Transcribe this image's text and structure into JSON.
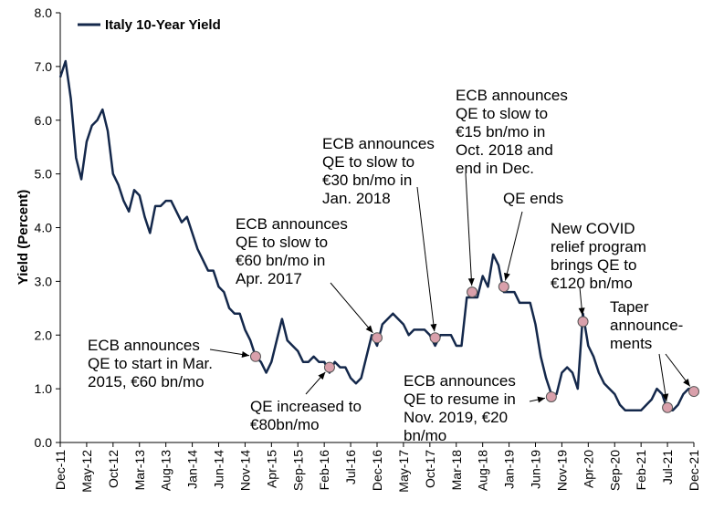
{
  "colors": {
    "line": "#14284b",
    "marker_fill": "#d9a0ab",
    "marker_stroke": "#555555",
    "arrow": "#000000"
  },
  "chart_data": {
    "type": "line",
    "title": "",
    "xlabel": "",
    "ylabel": "Yield (Percent)",
    "ylim": [
      0,
      8
    ],
    "yticks": [
      "0.0",
      "1.0",
      "2.0",
      "3.0",
      "4.0",
      "5.0",
      "6.0",
      "7.0",
      "8.0"
    ],
    "xlim": [
      "2011-12",
      "2021-12"
    ],
    "xticks": [
      "Dec-11",
      "May-12",
      "Oct-12",
      "Mar-13",
      "Aug-13",
      "Jan-14",
      "Jun-14",
      "Nov-14",
      "Apr-15",
      "Sep-15",
      "Feb-16",
      "Jul-16",
      "Dec-16",
      "May-17",
      "Oct-17",
      "Mar-18",
      "Aug-18",
      "Jan-19",
      "Jun-19",
      "Nov-19",
      "Apr-20",
      "Sep-20",
      "Feb-21",
      "Jul-21",
      "Dec-21"
    ],
    "grid": false,
    "legend_position": "top-left",
    "series": [
      {
        "name": "Italy 10-Year Yield",
        "points": [
          [
            "2011-12",
            6.8
          ],
          [
            "2012-01",
            7.1
          ],
          [
            "2012-02",
            6.4
          ],
          [
            "2012-03",
            5.3
          ],
          [
            "2012-04",
            4.9
          ],
          [
            "2012-05",
            5.6
          ],
          [
            "2012-06",
            5.9
          ],
          [
            "2012-07",
            6.0
          ],
          [
            "2012-08",
            6.2
          ],
          [
            "2012-09",
            5.8
          ],
          [
            "2012-10",
            5.0
          ],
          [
            "2012-11",
            4.8
          ],
          [
            "2012-12",
            4.5
          ],
          [
            "2013-01",
            4.3
          ],
          [
            "2013-02",
            4.7
          ],
          [
            "2013-03",
            4.6
          ],
          [
            "2013-04",
            4.2
          ],
          [
            "2013-05",
            3.9
          ],
          [
            "2013-06",
            4.4
          ],
          [
            "2013-07",
            4.4
          ],
          [
            "2013-08",
            4.5
          ],
          [
            "2013-09",
            4.5
          ],
          [
            "2013-10",
            4.3
          ],
          [
            "2013-11",
            4.1
          ],
          [
            "2013-12",
            4.2
          ],
          [
            "2014-01",
            3.9
          ],
          [
            "2014-02",
            3.6
          ],
          [
            "2014-03",
            3.4
          ],
          [
            "2014-04",
            3.2
          ],
          [
            "2014-05",
            3.2
          ],
          [
            "2014-06",
            2.9
          ],
          [
            "2014-07",
            2.8
          ],
          [
            "2014-08",
            2.5
          ],
          [
            "2014-09",
            2.4
          ],
          [
            "2014-10",
            2.4
          ],
          [
            "2014-11",
            2.1
          ],
          [
            "2014-12",
            1.9
          ],
          [
            "2015-01",
            1.6
          ],
          [
            "2015-02",
            1.5
          ],
          [
            "2015-03",
            1.3
          ],
          [
            "2015-04",
            1.5
          ],
          [
            "2015-05",
            1.9
          ],
          [
            "2015-06",
            2.3
          ],
          [
            "2015-07",
            1.9
          ],
          [
            "2015-08",
            1.8
          ],
          [
            "2015-09",
            1.7
          ],
          [
            "2015-10",
            1.5
          ],
          [
            "2015-11",
            1.5
          ],
          [
            "2015-12",
            1.6
          ],
          [
            "2016-01",
            1.5
          ],
          [
            "2016-02",
            1.5
          ],
          [
            "2016-03",
            1.3
          ],
          [
            "2016-04",
            1.5
          ],
          [
            "2016-05",
            1.4
          ],
          [
            "2016-06",
            1.4
          ],
          [
            "2016-07",
            1.2
          ],
          [
            "2016-08",
            1.1
          ],
          [
            "2016-09",
            1.2
          ],
          [
            "2016-10",
            1.6
          ],
          [
            "2016-11",
            2.0
          ],
          [
            "2016-12",
            1.8
          ],
          [
            "2017-01",
            2.2
          ],
          [
            "2017-02",
            2.3
          ],
          [
            "2017-03",
            2.4
          ],
          [
            "2017-04",
            2.3
          ],
          [
            "2017-05",
            2.2
          ],
          [
            "2017-06",
            2.0
          ],
          [
            "2017-07",
            2.1
          ],
          [
            "2017-08",
            2.1
          ],
          [
            "2017-09",
            2.1
          ],
          [
            "2017-10",
            2.0
          ],
          [
            "2017-11",
            1.8
          ],
          [
            "2017-12",
            2.0
          ],
          [
            "2018-01",
            2.0
          ],
          [
            "2018-02",
            2.0
          ],
          [
            "2018-03",
            1.8
          ],
          [
            "2018-04",
            1.8
          ],
          [
            "2018-05",
            2.7
          ],
          [
            "2018-06",
            2.7
          ],
          [
            "2018-07",
            2.7
          ],
          [
            "2018-08",
            3.1
          ],
          [
            "2018-09",
            2.9
          ],
          [
            "2018-10",
            3.5
          ],
          [
            "2018-11",
            3.3
          ],
          [
            "2018-12",
            2.8
          ],
          [
            "2019-01",
            2.8
          ],
          [
            "2019-02",
            2.8
          ],
          [
            "2019-03",
            2.6
          ],
          [
            "2019-04",
            2.6
          ],
          [
            "2019-05",
            2.6
          ],
          [
            "2019-06",
            2.2
          ],
          [
            "2019-07",
            1.6
          ],
          [
            "2019-08",
            1.2
          ],
          [
            "2019-09",
            0.9
          ],
          [
            "2019-10",
            0.9
          ],
          [
            "2019-11",
            1.3
          ],
          [
            "2019-12",
            1.4
          ],
          [
            "2020-01",
            1.3
          ],
          [
            "2020-02",
            1.0
          ],
          [
            "2020-03",
            2.4
          ],
          [
            "2020-04",
            1.8
          ],
          [
            "2020-05",
            1.6
          ],
          [
            "2020-06",
            1.3
          ],
          [
            "2020-07",
            1.1
          ],
          [
            "2020-08",
            1.0
          ],
          [
            "2020-09",
            0.9
          ],
          [
            "2020-10",
            0.7
          ],
          [
            "2020-11",
            0.6
          ],
          [
            "2020-12",
            0.6
          ],
          [
            "2021-01",
            0.6
          ],
          [
            "2021-02",
            0.6
          ],
          [
            "2021-03",
            0.7
          ],
          [
            "2021-04",
            0.8
          ],
          [
            "2021-05",
            1.0
          ],
          [
            "2021-06",
            0.9
          ],
          [
            "2021-07",
            0.6
          ],
          [
            "2021-08",
            0.6
          ],
          [
            "2021-09",
            0.7
          ],
          [
            "2021-10",
            0.9
          ],
          [
            "2021-11",
            1.0
          ],
          [
            "2021-12",
            1.0
          ]
        ]
      }
    ],
    "markers": [
      {
        "x": "2015-01",
        "y": 1.6
      },
      {
        "x": "2016-03",
        "y": 1.4
      },
      {
        "x": "2016-12",
        "y": 1.95
      },
      {
        "x": "2017-11",
        "y": 1.95
      },
      {
        "x": "2018-06",
        "y": 2.8
      },
      {
        "x": "2018-12",
        "y": 2.9
      },
      {
        "x": "2019-09",
        "y": 0.85
      },
      {
        "x": "2020-03",
        "y": 2.25
      },
      {
        "x": "2021-07",
        "y": 0.65
      },
      {
        "x": "2021-12",
        "y": 0.95
      }
    ],
    "annotations": [
      {
        "lines": [
          "ECB announces",
          "QE to start in Mar.",
          "2015, €60 bn/mo"
        ]
      },
      {
        "lines": [
          "QE increased to",
          "€80bn/mo"
        ]
      },
      {
        "lines": [
          "ECB announces",
          "QE to slow to",
          "€60 bn/mo in",
          "Apr. 2017"
        ]
      },
      {
        "lines": [
          "ECB announces",
          "QE to slow to",
          "€30 bn/mo in",
          "Jan. 2018"
        ]
      },
      {
        "lines": [
          "ECB announces",
          "QE to slow to",
          "€15 bn/mo in",
          "Oct. 2018 and",
          "end in Dec."
        ]
      },
      {
        "lines": [
          "QE ends"
        ]
      },
      {
        "lines": [
          "ECB announces",
          "QE to resume in",
          "Nov. 2019, €20",
          "bn/mo"
        ]
      },
      {
        "lines": [
          "New COVID",
          "relief program",
          "brings QE to",
          "€120 bn/mo"
        ]
      },
      {
        "lines": [
          "Taper",
          "announce-",
          "ments"
        ]
      }
    ]
  }
}
